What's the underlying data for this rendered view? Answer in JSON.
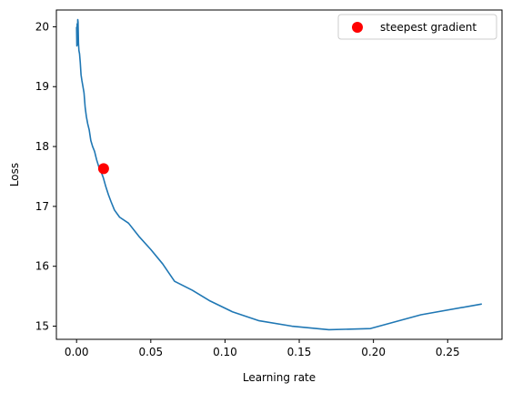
{
  "chart_data": {
    "type": "line",
    "xlabel": "Learning rate",
    "ylabel": "Loss",
    "xlim": [
      -0.0136,
      0.2866
    ],
    "ylim": [
      14.78,
      20.28
    ],
    "xticks": [
      0.0,
      0.05,
      0.1,
      0.15,
      0.2,
      0.25
    ],
    "xtick_labels": [
      "0.00",
      "0.05",
      "0.10",
      "0.15",
      "0.20",
      "0.25"
    ],
    "yticks": [
      15,
      16,
      17,
      18,
      19,
      20
    ],
    "ytick_labels": [
      "15",
      "16",
      "17",
      "18",
      "19",
      "20"
    ],
    "grid": false,
    "legend_position": "top-right",
    "series": [
      {
        "color": "#1f77b4",
        "x": [
          0.0,
          0.0002,
          0.0004,
          0.0006,
          0.0008,
          0.001,
          0.0013,
          0.0016,
          0.002,
          0.0025,
          0.003,
          0.0036,
          0.0043,
          0.005,
          0.0058,
          0.0066,
          0.0075,
          0.0085,
          0.0096,
          0.0108,
          0.0121,
          0.0135,
          0.015,
          0.0165,
          0.018,
          0.0197,
          0.0214,
          0.0232,
          0.0255,
          0.029,
          0.035,
          0.042,
          0.05,
          0.058,
          0.066,
          0.078,
          0.09,
          0.105,
          0.123,
          0.145,
          0.17,
          0.198,
          0.232,
          0.273
        ],
        "y": [
          20.0,
          19.68,
          20.05,
          19.7,
          20.12,
          20.08,
          19.72,
          19.6,
          19.55,
          19.4,
          19.2,
          19.1,
          19.0,
          18.9,
          18.65,
          18.5,
          18.38,
          18.28,
          18.1,
          18.0,
          17.92,
          17.78,
          17.66,
          17.58,
          17.48,
          17.33,
          17.2,
          17.08,
          16.94,
          16.82,
          16.72,
          16.5,
          16.28,
          16.04,
          15.75,
          15.6,
          15.42,
          15.24,
          15.09,
          15.0,
          14.94,
          14.96,
          15.19,
          15.37
        ]
      }
    ],
    "markers": [
      {
        "name": "steepest gradient",
        "x": 0.0182,
        "y": 17.63,
        "color": "#ff0000"
      }
    ]
  }
}
